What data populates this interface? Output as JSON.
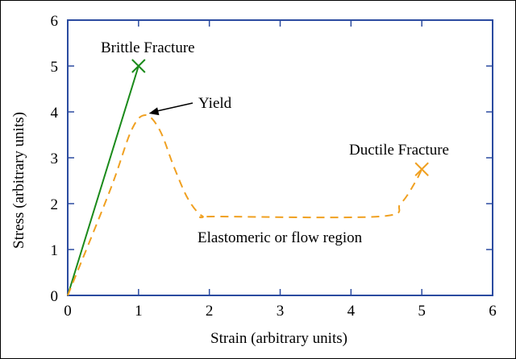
{
  "chart_data": {
    "type": "line",
    "title": "",
    "xlabel": "Strain (arbitrary units)",
    "ylabel": "Stress (arbitrary units)",
    "xlim": [
      0,
      6
    ],
    "ylim": [
      0,
      6
    ],
    "xticks": [
      "0",
      "1",
      "2",
      "3",
      "4",
      "5",
      "6"
    ],
    "yticks": [
      "0",
      "1",
      "2",
      "3",
      "4",
      "5",
      "6"
    ],
    "grid": false,
    "series": [
      {
        "style": "solid",
        "color": "#1a8a1a",
        "x": [
          0,
          1
        ],
        "y": [
          0,
          5
        ],
        "end_marker": "x"
      },
      {
        "style": "dashed",
        "color": "#f0a020",
        "x": [
          0,
          0.6,
          0.9,
          1.1,
          1.3,
          1.5,
          1.7,
          1.9,
          2.1,
          4.4,
          4.7,
          4.9,
          5.0
        ],
        "y": [
          0,
          2.3,
          3.6,
          3.93,
          3.6,
          2.8,
          2.1,
          1.73,
          1.72,
          1.72,
          2.0,
          2.45,
          2.75
        ],
        "end_marker": "x"
      }
    ],
    "annotations": [
      {
        "id": "brittle",
        "text": "Brittle Fracture"
      },
      {
        "id": "yield",
        "text": "Yield",
        "arrow_to": [
          1.1,
          3.93
        ]
      },
      {
        "id": "ductile",
        "text": "Ductile Fracture"
      },
      {
        "id": "flow",
        "text": "Elastomeric or flow region"
      }
    ],
    "colors": {
      "axes": "#2b4ba0",
      "brittle": "#1a8a1a",
      "ductile": "#f0a020"
    }
  }
}
